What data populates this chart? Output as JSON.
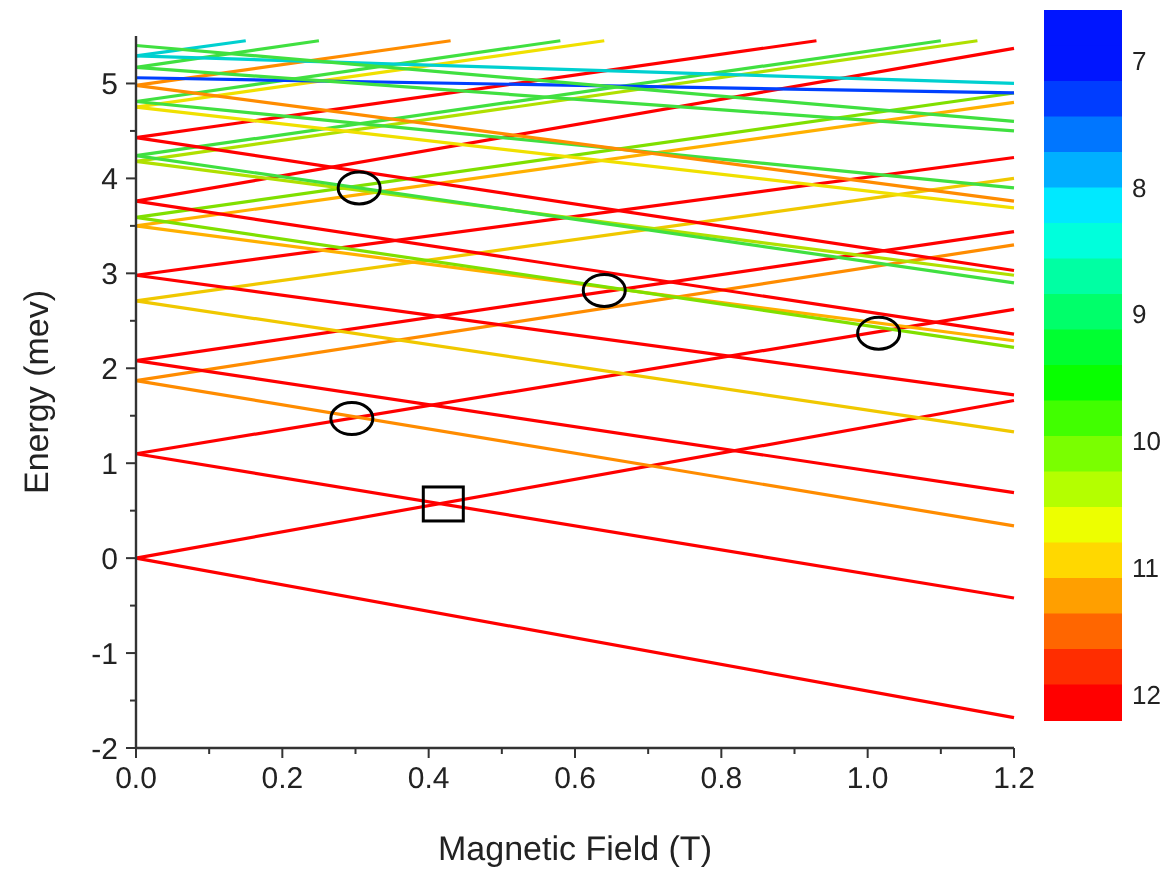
{
  "chart_data": {
    "type": "line",
    "xlabel": "Magnetic Field (T)",
    "ylabel": "Energy (mev)",
    "xlim": [
      0,
      1.2
    ],
    "ylim": [
      -2,
      5.5
    ],
    "xticks": [
      {
        "value": 0,
        "label": "0.0"
      },
      {
        "value": 0.1,
        "label": null
      },
      0.2,
      {
        "value": 0.3,
        "label": null
      },
      0.4,
      {
        "value": 0.5,
        "label": null
      },
      0.6,
      {
        "value": 0.7,
        "label": null
      },
      0.8,
      {
        "value": 0.9,
        "label": null
      },
      {
        "value": 1,
        "label": "1.0"
      },
      {
        "value": 1.1,
        "label": null
      },
      1.2
    ],
    "yticks": [
      -2,
      {
        "value": -1.5,
        "label": null
      },
      -1,
      {
        "value": -0.5,
        "label": null
      },
      0,
      {
        "value": 0.5,
        "label": null
      },
      1,
      {
        "value": 1.5,
        "label": null
      },
      2,
      {
        "value": 2.5,
        "label": null
      },
      3,
      {
        "value": 3.5,
        "label": null
      },
      4,
      {
        "value": 4.5,
        "label": null
      },
      5
    ],
    "clim": [
      12.2,
      6.6
    ],
    "cticks": [
      7,
      8,
      9,
      10,
      11,
      12
    ],
    "grid": false,
    "marker": "none",
    "line_style": "solid",
    "series": [
      {
        "color": "#ff0000",
        "x": [
          0,
          1.2
        ],
        "values": [
          0,
          -1.68
        ]
      },
      {
        "color": "#ff0000",
        "x": [
          0,
          1.2
        ],
        "values": [
          0,
          1.66
        ]
      },
      {
        "color": "#ff0000",
        "x": [
          0,
          1.2
        ],
        "values": [
          1.1,
          -0.42
        ]
      },
      {
        "color": "#ff0000",
        "x": [
          0,
          1.2
        ],
        "values": [
          1.1,
          2.62
        ]
      },
      {
        "color": "#ff8c00",
        "x": [
          0,
          1.2
        ],
        "values": [
          1.87,
          0.34
        ]
      },
      {
        "color": "#ff8c00",
        "x": [
          0,
          1.2
        ],
        "values": [
          1.87,
          3.3
        ]
      },
      {
        "color": "#ff0000",
        "x": [
          0,
          1.2
        ],
        "values": [
          2.08,
          0.69
        ]
      },
      {
        "color": "#ff0000",
        "x": [
          0,
          1.2
        ],
        "values": [
          2.08,
          3.44
        ]
      },
      {
        "color": "#f0c800",
        "x": [
          0,
          1.2
        ],
        "values": [
          2.71,
          1.33
        ]
      },
      {
        "color": "#f0c800",
        "x": [
          0,
          1.2
        ],
        "values": [
          2.71,
          4
        ]
      },
      {
        "color": "#ff0000",
        "x": [
          0,
          1.2
        ],
        "values": [
          2.98,
          1.72
        ]
      },
      {
        "color": "#ff0000",
        "x": [
          0,
          1.2
        ],
        "values": [
          2.98,
          4.22
        ]
      },
      {
        "color": "#ffb000",
        "x": [
          0,
          1.2
        ],
        "values": [
          3.5,
          2.29
        ]
      },
      {
        "color": "#ffb000",
        "x": [
          0,
          1.2
        ],
        "values": [
          3.5,
          4.8
        ]
      },
      {
        "color": "#80e000",
        "x": [
          0,
          1.2
        ],
        "values": [
          3.59,
          2.22
        ]
      },
      {
        "color": "#80e000",
        "x": [
          0,
          1.2
        ],
        "values": [
          3.59,
          4.9
        ]
      },
      {
        "color": "#ff0000",
        "x": [
          0,
          1.2
        ],
        "values": [
          3.76,
          2.36
        ]
      },
      {
        "color": "#ff0000",
        "x": [
          0,
          1.2
        ],
        "values": [
          3.76,
          5.37
        ]
      },
      {
        "color": "#b0e000",
        "x": [
          0,
          1.2
        ],
        "values": [
          4.18,
          2.98
        ]
      },
      {
        "color": "#b0e000",
        "x": [
          0,
          1.15
        ],
        "values": [
          4.18,
          5.45
        ]
      },
      {
        "color": "#40e040",
        "x": [
          0,
          1.2
        ],
        "values": [
          4.24,
          2.9
        ]
      },
      {
        "color": "#40e040",
        "x": [
          0,
          1.1
        ],
        "values": [
          4.24,
          5.45
        ]
      },
      {
        "color": "#ff0000",
        "x": [
          0,
          1.2
        ],
        "values": [
          4.43,
          3.03
        ]
      },
      {
        "color": "#ff0000",
        "x": [
          0,
          0.93
        ],
        "values": [
          4.43,
          5.45
        ]
      },
      {
        "color": "#f0e000",
        "x": [
          0,
          1.2
        ],
        "values": [
          4.75,
          3.69
        ]
      },
      {
        "color": "#f0e000",
        "x": [
          0,
          0.64
        ],
        "values": [
          4.75,
          5.45
        ]
      },
      {
        "color": "#40e040",
        "x": [
          0,
          1.2
        ],
        "values": [
          4.81,
          3.9
        ]
      },
      {
        "color": "#40e040",
        "x": [
          0,
          0.58
        ],
        "values": [
          4.81,
          5.45
        ]
      },
      {
        "color": "#ff8c00",
        "x": [
          0,
          1.2
        ],
        "values": [
          4.98,
          3.76
        ]
      },
      {
        "color": "#ff8c00",
        "x": [
          0,
          0.43
        ],
        "values": [
          4.98,
          5.45
        ]
      },
      {
        "color": "#0040ff",
        "x": [
          0,
          1.2
        ],
        "values": [
          5.06,
          4.9
        ]
      },
      {
        "color": "#40e040",
        "x": [
          0,
          1.2
        ],
        "values": [
          5.17,
          4.5
        ]
      },
      {
        "color": "#40e040",
        "x": [
          0,
          0.25
        ],
        "values": [
          5.17,
          5.45
        ]
      },
      {
        "color": "#00d0d0",
        "x": [
          0,
          1.2
        ],
        "values": [
          5.29,
          5
        ]
      },
      {
        "color": "#00d0d0",
        "x": [
          0,
          0.15
        ],
        "values": [
          5.29,
          5.45
        ]
      },
      {
        "color": "#40e040",
        "x": [
          0,
          1.2
        ],
        "values": [
          5.4,
          4.6
        ]
      }
    ]
  }
}
